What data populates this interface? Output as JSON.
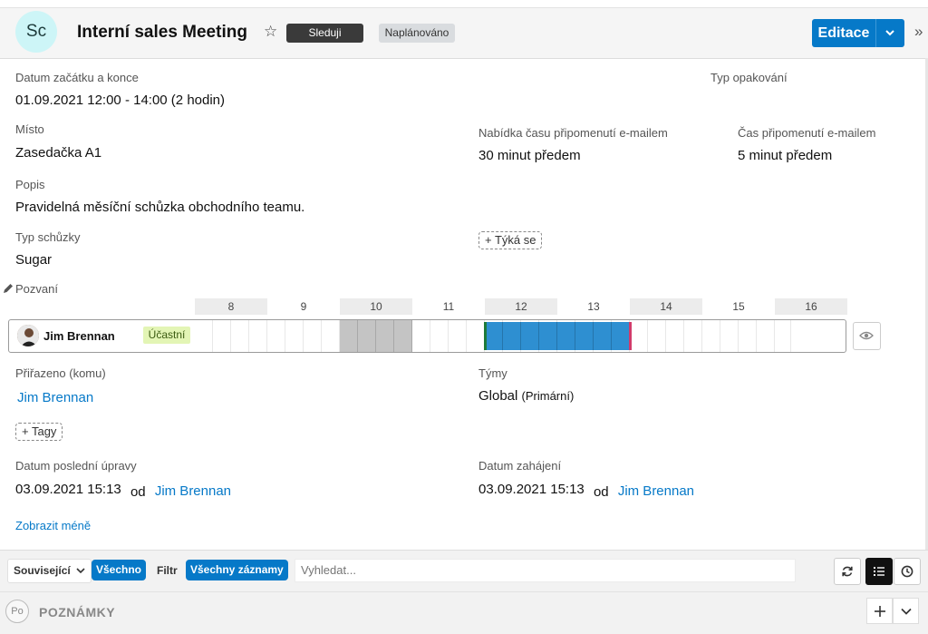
{
  "header": {
    "avatar_initials": "Sc",
    "title": "Interní sales Meeting",
    "follow_label": "Sleduji",
    "status_label": "Naplánováno",
    "edit_label": "Editace"
  },
  "fields": {
    "dates_label": "Datum začátku a konce",
    "dates_value": "01.09.2021 12:00 - 14:00 (2 hodin)",
    "repeat_label": "Typ opakování",
    "repeat_value": "",
    "place_label": "Místo",
    "place_value": "Zasedačka A1",
    "reminder_offer_label": "Nabídka času připomenutí e-mailem",
    "reminder_offer_value": "30 minut předem",
    "reminder_time_label": "Čas připomenutí e-mailem",
    "reminder_time_value": "5 minut předem",
    "description_label": "Popis",
    "description_value": "Pravidelná měsíční schůzka obchodního teamu.",
    "meeting_type_label": "Typ schůzky",
    "meeting_type_value": "Sugar",
    "concerns_button": "+ Týká se",
    "invitees_label": "Pozvaní",
    "assigned_label": "Přiřazeno (komu)",
    "assigned_value": "Jim Brennan",
    "teams_label": "Týmy",
    "teams_value": "Global",
    "teams_primary": "(Primární)",
    "tags_button": "+ Tagy",
    "modified_label": "Datum poslední úpravy",
    "modified_date": "03.09.2021 15:13",
    "modified_by_word": "od",
    "modified_by": "Jim Brennan",
    "created_label": "Datum zahájení",
    "created_date": "03.09.2021 15:13",
    "created_by_word": "od",
    "created_by": "Jim Brennan",
    "show_less": "Zobrazit méně"
  },
  "scheduler": {
    "hours": [
      "8",
      "9",
      "10",
      "11",
      "12",
      "13",
      "14",
      "15",
      "16"
    ],
    "attendee_name": "Jim Brennan",
    "attendee_status": "Účastní",
    "meeting_start_hour": 12,
    "meeting_end_hour": 14,
    "colors": {
      "meeting": "#2e8fd1",
      "busy": "#c4c4c4",
      "start_marker": "#1d7a3a",
      "end_marker": "#d23a6a"
    }
  },
  "subpanel": {
    "related_label": "Související",
    "all_label": "Všechno",
    "filter_label": "Filtr",
    "all_records_label": "Všechny záznamy",
    "search_placeholder": "Vyhledat..."
  },
  "notes": {
    "icon_initials": "Po",
    "title": "POZNÁMKY"
  },
  "colors": {
    "accent": "#0679c8",
    "avatar_bg": "#cdf5f7"
  }
}
